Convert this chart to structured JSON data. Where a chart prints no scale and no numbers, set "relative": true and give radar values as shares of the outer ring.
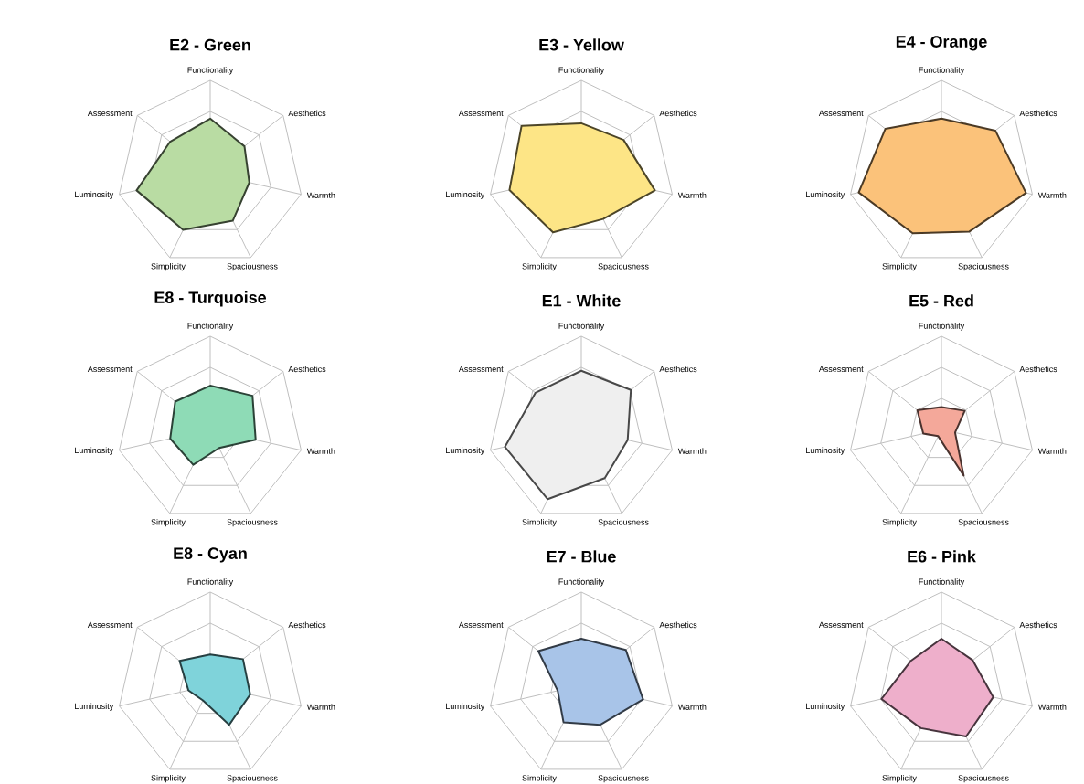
{
  "chart_data": [
    {
      "type": "radar",
      "title": "E2 - Green",
      "relative": true,
      "grid": true,
      "categories": [
        "Functionality",
        "Aesthetics",
        "Warmth",
        "Spaciousness",
        "Simplicity",
        "Luminosity",
        "Assessment"
      ],
      "series": [
        {
          "color": "#b9dca3",
          "values": [
            0.59,
            0.47,
            0.43,
            0.56,
            0.67,
            0.81,
            0.55
          ]
        }
      ]
    },
    {
      "type": "radar",
      "title": "E3 - Yellow",
      "relative": true,
      "grid": true,
      "categories": [
        "Functionality",
        "Aesthetics",
        "Warmth",
        "Spaciousness",
        "Simplicity",
        "Luminosity",
        "Assessment"
      ],
      "series": [
        {
          "color": "#fde586",
          "values": [
            0.54,
            0.58,
            0.81,
            0.54,
            0.7,
            0.79,
            0.82
          ]
        }
      ]
    },
    {
      "type": "radar",
      "title": "E4 - Orange",
      "relative": true,
      "grid": true,
      "categories": [
        "Functionality",
        "Aesthetics",
        "Warmth",
        "Spaciousness",
        "Simplicity",
        "Luminosity",
        "Assessment"
      ],
      "series": [
        {
          "color": "#fbc27a",
          "values": [
            0.59,
            0.74,
            0.93,
            0.69,
            0.71,
            0.91,
            0.77
          ]
        }
      ]
    },
    {
      "type": "radar",
      "title": "E8 - Turquoise",
      "relative": true,
      "grid": true,
      "categories": [
        "Functionality",
        "Aesthetics",
        "Warmth",
        "Spaciousness",
        "Simplicity",
        "Luminosity",
        "Assessment"
      ],
      "series": [
        {
          "color": "#8edbb6",
          "values": [
            0.47,
            0.58,
            0.5,
            0.22,
            0.42,
            0.44,
            0.48
          ]
        }
      ]
    },
    {
      "type": "radar",
      "title": "E1 - White",
      "relative": true,
      "grid": true,
      "categories": [
        "Functionality",
        "Aesthetics",
        "Warmth",
        "Spaciousness",
        "Simplicity",
        "Luminosity",
        "Assessment"
      ],
      "series": [
        {
          "color": "#efefef",
          "values": [
            0.63,
            0.68,
            0.51,
            0.58,
            0.83,
            0.84,
            0.63
          ]
        }
      ]
    },
    {
      "type": "radar",
      "title": "E5 - Red",
      "relative": true,
      "grid": true,
      "categories": [
        "Functionality",
        "Aesthetics",
        "Warmth",
        "Spaciousness",
        "Simplicity",
        "Luminosity",
        "Assessment"
      ],
      "series": [
        {
          "color": "#f4a89a",
          "values": [
            0.24,
            0.32,
            0.15,
            0.55,
            0.08,
            0.2,
            0.33
          ]
        }
      ]
    },
    {
      "type": "radar",
      "title": "E8 - Cyan",
      "relative": true,
      "grid": true,
      "categories": [
        "Functionality",
        "Aesthetics",
        "Warmth",
        "Spaciousness",
        "Simplicity",
        "Luminosity",
        "Assessment"
      ],
      "series": [
        {
          "color": "#7fd3da",
          "values": [
            0.33,
            0.45,
            0.44,
            0.47,
            0.18,
            0.24,
            0.42
          ]
        }
      ]
    },
    {
      "type": "radar",
      "title": "E7 - Blue",
      "relative": true,
      "grid": true,
      "categories": [
        "Functionality",
        "Aesthetics",
        "Warmth",
        "Spaciousness",
        "Simplicity",
        "Luminosity",
        "Assessment"
      ],
      "series": [
        {
          "color": "#a8c4e8",
          "values": [
            0.5,
            0.61,
            0.68,
            0.47,
            0.44,
            0.26,
            0.59
          ]
        }
      ]
    },
    {
      "type": "radar",
      "title": "E6 - Pink",
      "relative": true,
      "grid": true,
      "categories": [
        "Functionality",
        "Aesthetics",
        "Warmth",
        "Spaciousness",
        "Simplicity",
        "Luminosity",
        "Assessment"
      ],
      "series": [
        {
          "color": "#eeafcb",
          "values": [
            0.5,
            0.43,
            0.57,
            0.61,
            0.51,
            0.66,
            0.42
          ]
        }
      ]
    }
  ]
}
